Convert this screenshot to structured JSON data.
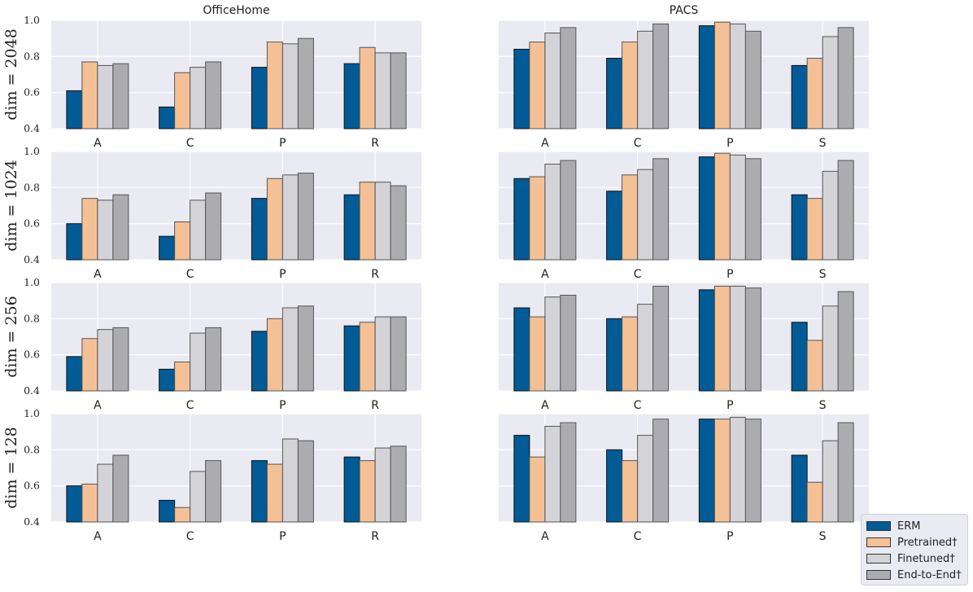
{
  "legend": [
    {
      "name": "ERM",
      "color": "#005b96"
    },
    {
      "name": "Pretrained†",
      "color": "#f4c196"
    },
    {
      "name": "Finetuned†",
      "color": "#d4d4d8"
    },
    {
      "name": "End-to-End†",
      "color": "#acacb0"
    }
  ],
  "chart_data": [
    {
      "type": "bar",
      "title": "OfficeHome",
      "ylabel": "dim = 2048",
      "ylim": [
        0.4,
        1.0
      ],
      "yticks": [
        "0.4",
        "0.6",
        "0.8",
        "1.0"
      ],
      "categories": [
        "A",
        "C",
        "P",
        "R"
      ],
      "series": [
        {
          "name": "ERM",
          "values": [
            0.61,
            0.52,
            0.74,
            0.76
          ]
        },
        {
          "name": "Pretrained†",
          "values": [
            0.77,
            0.71,
            0.88,
            0.85
          ]
        },
        {
          "name": "Finetuned†",
          "values": [
            0.75,
            0.74,
            0.87,
            0.82
          ]
        },
        {
          "name": "End-to-End†",
          "values": [
            0.76,
            0.77,
            0.9,
            0.82
          ]
        }
      ]
    },
    {
      "type": "bar",
      "title": "PACS",
      "ylabel": "",
      "ylim": [
        0.4,
        1.0
      ],
      "categories": [
        "A",
        "C",
        "P",
        "S"
      ],
      "series": [
        {
          "name": "ERM",
          "values": [
            0.84,
            0.79,
            0.97,
            0.75
          ]
        },
        {
          "name": "Pretrained†",
          "values": [
            0.88,
            0.88,
            0.99,
            0.79
          ]
        },
        {
          "name": "Finetuned†",
          "values": [
            0.93,
            0.94,
            0.98,
            0.91
          ]
        },
        {
          "name": "End-to-End†",
          "values": [
            0.96,
            0.98,
            0.94,
            0.96
          ]
        }
      ]
    },
    {
      "type": "bar",
      "title": "",
      "ylabel": "dim = 1024",
      "ylim": [
        0.4,
        1.0
      ],
      "yticks": [
        "0.4",
        "0.6",
        "0.8",
        "1.0"
      ],
      "categories": [
        "A",
        "C",
        "P",
        "R"
      ],
      "series": [
        {
          "name": "ERM",
          "values": [
            0.6,
            0.53,
            0.74,
            0.76
          ]
        },
        {
          "name": "Pretrained†",
          "values": [
            0.74,
            0.61,
            0.85,
            0.83
          ]
        },
        {
          "name": "Finetuned†",
          "values": [
            0.73,
            0.73,
            0.87,
            0.83
          ]
        },
        {
          "name": "End-to-End†",
          "values": [
            0.76,
            0.77,
            0.88,
            0.81
          ]
        }
      ]
    },
    {
      "type": "bar",
      "title": "",
      "ylabel": "",
      "ylim": [
        0.4,
        1.0
      ],
      "categories": [
        "A",
        "C",
        "P",
        "S"
      ],
      "series": [
        {
          "name": "ERM",
          "values": [
            0.85,
            0.78,
            0.97,
            0.76
          ]
        },
        {
          "name": "Pretrained†",
          "values": [
            0.86,
            0.87,
            0.99,
            0.74
          ]
        },
        {
          "name": "Finetuned†",
          "values": [
            0.93,
            0.9,
            0.98,
            0.89
          ]
        },
        {
          "name": "End-to-End†",
          "values": [
            0.95,
            0.96,
            0.96,
            0.95
          ]
        }
      ]
    },
    {
      "type": "bar",
      "title": "",
      "ylabel": "dim = 256",
      "ylim": [
        0.4,
        1.0
      ],
      "yticks": [
        "0.4",
        "0.6",
        "0.8",
        "1.0"
      ],
      "categories": [
        "A",
        "C",
        "P",
        "R"
      ],
      "series": [
        {
          "name": "ERM",
          "values": [
            0.59,
            0.52,
            0.73,
            0.76
          ]
        },
        {
          "name": "Pretrained†",
          "values": [
            0.69,
            0.56,
            0.8,
            0.78
          ]
        },
        {
          "name": "Finetuned†",
          "values": [
            0.74,
            0.72,
            0.86,
            0.81
          ]
        },
        {
          "name": "End-to-End†",
          "values": [
            0.75,
            0.75,
            0.87,
            0.81
          ]
        }
      ]
    },
    {
      "type": "bar",
      "title": "",
      "ylabel": "",
      "ylim": [
        0.4,
        1.0
      ],
      "categories": [
        "A",
        "C",
        "P",
        "S"
      ],
      "series": [
        {
          "name": "ERM",
          "values": [
            0.86,
            0.8,
            0.96,
            0.78
          ]
        },
        {
          "name": "Pretrained†",
          "values": [
            0.81,
            0.81,
            0.98,
            0.68
          ]
        },
        {
          "name": "Finetuned†",
          "values": [
            0.92,
            0.88,
            0.98,
            0.87
          ]
        },
        {
          "name": "End-to-End†",
          "values": [
            0.93,
            0.98,
            0.97,
            0.95
          ]
        }
      ]
    },
    {
      "type": "bar",
      "title": "",
      "ylabel": "dim = 128",
      "ylim": [
        0.4,
        1.0
      ],
      "yticks": [
        "0.4",
        "0.6",
        "0.8",
        "1.0"
      ],
      "categories": [
        "A",
        "C",
        "P",
        "R"
      ],
      "series": [
        {
          "name": "ERM",
          "values": [
            0.6,
            0.52,
            0.74,
            0.76
          ]
        },
        {
          "name": "Pretrained†",
          "values": [
            0.61,
            0.48,
            0.72,
            0.74
          ]
        },
        {
          "name": "Finetuned†",
          "values": [
            0.72,
            0.68,
            0.86,
            0.81
          ]
        },
        {
          "name": "End-to-End†",
          "values": [
            0.77,
            0.74,
            0.85,
            0.82
          ]
        }
      ]
    },
    {
      "type": "bar",
      "title": "",
      "ylabel": "",
      "ylim": [
        0.4,
        1.0
      ],
      "categories": [
        "A",
        "C",
        "P",
        "S"
      ],
      "series": [
        {
          "name": "ERM",
          "values": [
            0.88,
            0.8,
            0.97,
            0.77
          ]
        },
        {
          "name": "Pretrained†",
          "values": [
            0.76,
            0.74,
            0.97,
            0.62
          ]
        },
        {
          "name": "Finetuned†",
          "values": [
            0.93,
            0.88,
            0.98,
            0.85
          ]
        },
        {
          "name": "End-to-End†",
          "values": [
            0.95,
            0.97,
            0.97,
            0.95
          ]
        }
      ]
    }
  ]
}
